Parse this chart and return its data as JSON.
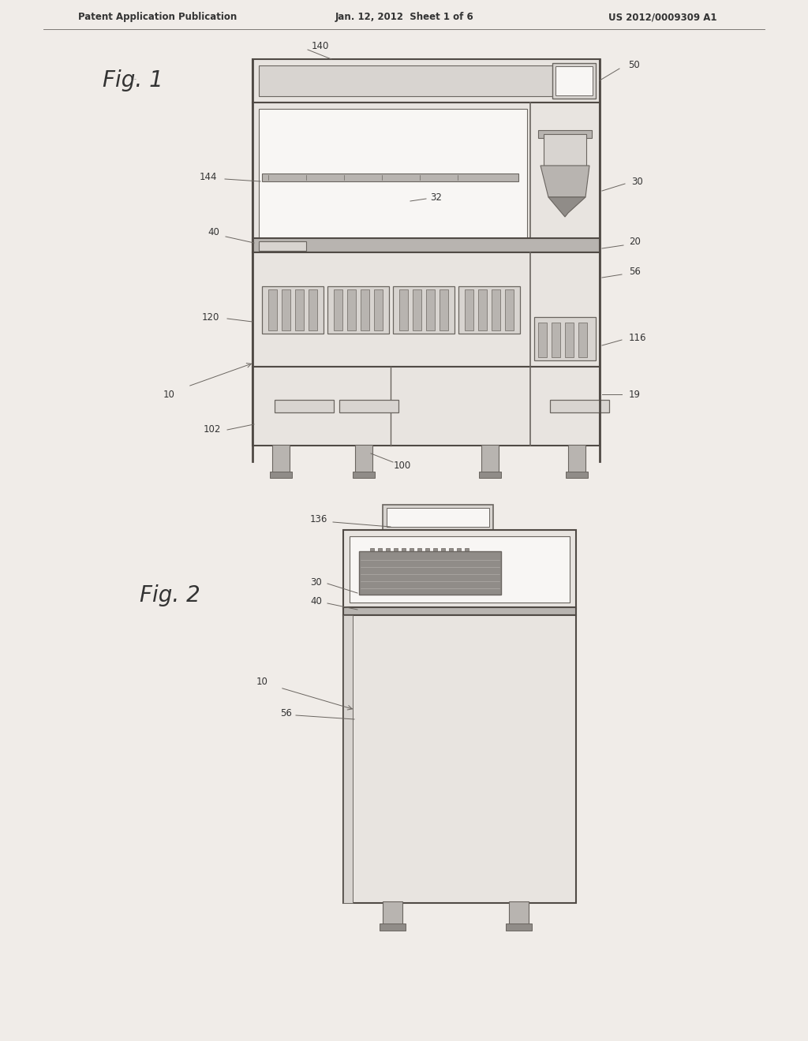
{
  "bg": "#f0ece8",
  "lc": "#6a6560",
  "lc2": "#504a45",
  "fill_very_light": "#e8e4e0",
  "fill_light": "#d8d4d0",
  "fill_medium": "#b8b4b0",
  "fill_dark": "#908c88",
  "fill_darker": "#787470",
  "white": "#f8f6f4",
  "header_left": "Patent Application Publication",
  "header_mid": "Jan. 12, 2012  Sheet 1 of 6",
  "header_right": "US 2012/0009309 A1"
}
